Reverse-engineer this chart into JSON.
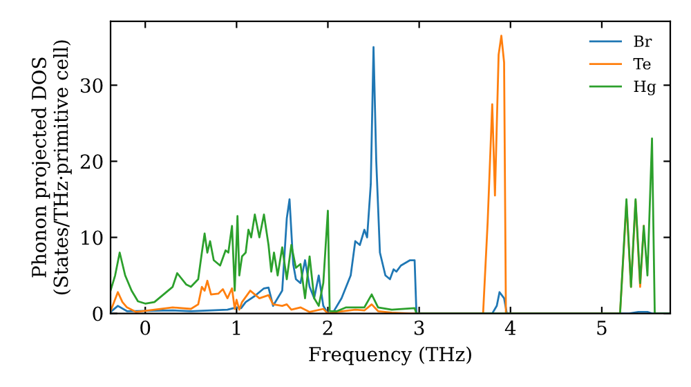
{
  "chart_data": {
    "type": "line",
    "xlabel": "Frequency (THz)",
    "ylabel": "Phonon projected DOS\n(States/THz·primitive cell)",
    "xlim": [
      -0.38,
      5.75
    ],
    "ylim": [
      0,
      38.4
    ],
    "xticks": [
      0,
      1,
      2,
      3,
      4,
      5
    ],
    "yticks": [
      0,
      10,
      20,
      30
    ],
    "grid": false,
    "legend": "top right",
    "marker": "none",
    "line_style": "solid",
    "series": [
      {
        "name": "Br",
        "color": "#1f77b4",
        "x": [
          -0.38,
          -0.3,
          -0.2,
          0.3,
          0.5,
          0.9,
          1.0,
          1.05,
          1.1,
          1.2,
          1.3,
          1.35,
          1.4,
          1.5,
          1.55,
          1.58,
          1.62,
          1.65,
          1.7,
          1.75,
          1.8,
          1.85,
          1.9,
          1.95,
          2.0,
          2.05,
          2.15,
          2.25,
          2.3,
          2.35,
          2.4,
          2.43,
          2.47,
          2.5,
          2.53,
          2.57,
          2.63,
          2.68,
          2.72,
          2.75,
          2.8,
          2.9,
          2.95,
          2.97,
          3.8,
          3.85,
          3.88,
          3.93,
          3.96,
          5.3,
          5.4,
          5.5,
          5.55,
          5.75
        ],
        "values": [
          0.2,
          1,
          0.3,
          0.4,
          0.3,
          0.5,
          0.8,
          0.7,
          1.5,
          2.3,
          3.3,
          3.4,
          1,
          3,
          12.5,
          15,
          6.5,
          4.5,
          4,
          7,
          3.5,
          2,
          5,
          1,
          0,
          0,
          2,
          5,
          9.5,
          9,
          11,
          10,
          17,
          35,
          20,
          8,
          5,
          4.5,
          5.8,
          5.5,
          6.3,
          7,
          7,
          0,
          0,
          1,
          2.8,
          2,
          0,
          0,
          0.2,
          0.2,
          0,
          0
        ]
      },
      {
        "name": "Te",
        "color": "#ff7f0e",
        "x": [
          -0.38,
          -0.3,
          -0.25,
          -0.2,
          -0.1,
          0.3,
          0.5,
          0.58,
          0.62,
          0.65,
          0.68,
          0.72,
          0.8,
          0.85,
          0.9,
          0.95,
          0.98,
          1.0,
          1.03,
          1.06,
          1.15,
          1.2,
          1.25,
          1.35,
          1.4,
          1.5,
          1.55,
          1.6,
          1.7,
          1.8,
          1.95,
          2.0,
          2.1,
          2.3,
          2.4,
          2.48,
          2.55,
          2.7,
          2.9,
          3.7,
          3.75,
          3.8,
          3.83,
          3.87,
          3.9,
          3.93,
          3.95,
          5.2,
          5.27,
          5.32,
          5.37,
          5.42,
          5.46
        ],
        "values": [
          0.3,
          2.8,
          1.5,
          0.8,
          0.2,
          0.8,
          0.6,
          1.2,
          3.5,
          3,
          4.3,
          2.5,
          2.6,
          3.2,
          2,
          3.3,
          0.6,
          1.8,
          0.5,
          1.5,
          3,
          2.5,
          2,
          2.4,
          1.2,
          1,
          1.2,
          0.5,
          0.8,
          0.2,
          0.6,
          0,
          0.2,
          0.5,
          0.4,
          1.2,
          0.3,
          0.1,
          0,
          0,
          12,
          27.5,
          15.5,
          34,
          36.5,
          33,
          0,
          0,
          14.5,
          3.5,
          14.8,
          3.5,
          11.5
        ]
      },
      {
        "name": "Hg",
        "color": "#2ca02c",
        "x": [
          -0.38,
          -0.33,
          -0.28,
          -0.22,
          -0.15,
          -0.08,
          0,
          0.1,
          0.2,
          0.3,
          0.35,
          0.45,
          0.5,
          0.58,
          0.62,
          0.65,
          0.68,
          0.71,
          0.75,
          0.82,
          0.88,
          0.91,
          0.95,
          0.98,
          1.01,
          1.03,
          1.06,
          1.1,
          1.13,
          1.16,
          1.2,
          1.25,
          1.3,
          1.35,
          1.38,
          1.41,
          1.45,
          1.5,
          1.55,
          1.6,
          1.65,
          1.7,
          1.75,
          1.8,
          1.85,
          1.9,
          1.95,
          2.0,
          2.02,
          2.1,
          2.2,
          2.4,
          2.48,
          2.55,
          2.7,
          2.95,
          2.97,
          5.2,
          5.27,
          5.32,
          5.37,
          5.42,
          5.46,
          5.5,
          5.55,
          5.58,
          5.75
        ],
        "values": [
          3,
          5,
          8,
          5,
          3,
          1.6,
          1.3,
          1.5,
          2.5,
          3.5,
          5.3,
          3.8,
          3.5,
          4.5,
          8,
          10.5,
          8,
          9.5,
          7,
          6.3,
          8.3,
          8,
          11.5,
          3,
          12.8,
          5,
          7.5,
          8,
          11,
          10,
          13,
          10,
          13,
          9,
          5.5,
          8,
          5,
          8.7,
          4.5,
          9,
          6,
          6.5,
          2,
          7.5,
          2,
          1,
          4,
          13.5,
          0.3,
          0.3,
          0.8,
          0.8,
          2.5,
          0.8,
          0.5,
          0.7,
          0,
          0,
          15,
          3.5,
          15,
          4,
          11.5,
          5,
          23,
          0,
          0
        ]
      }
    ]
  }
}
